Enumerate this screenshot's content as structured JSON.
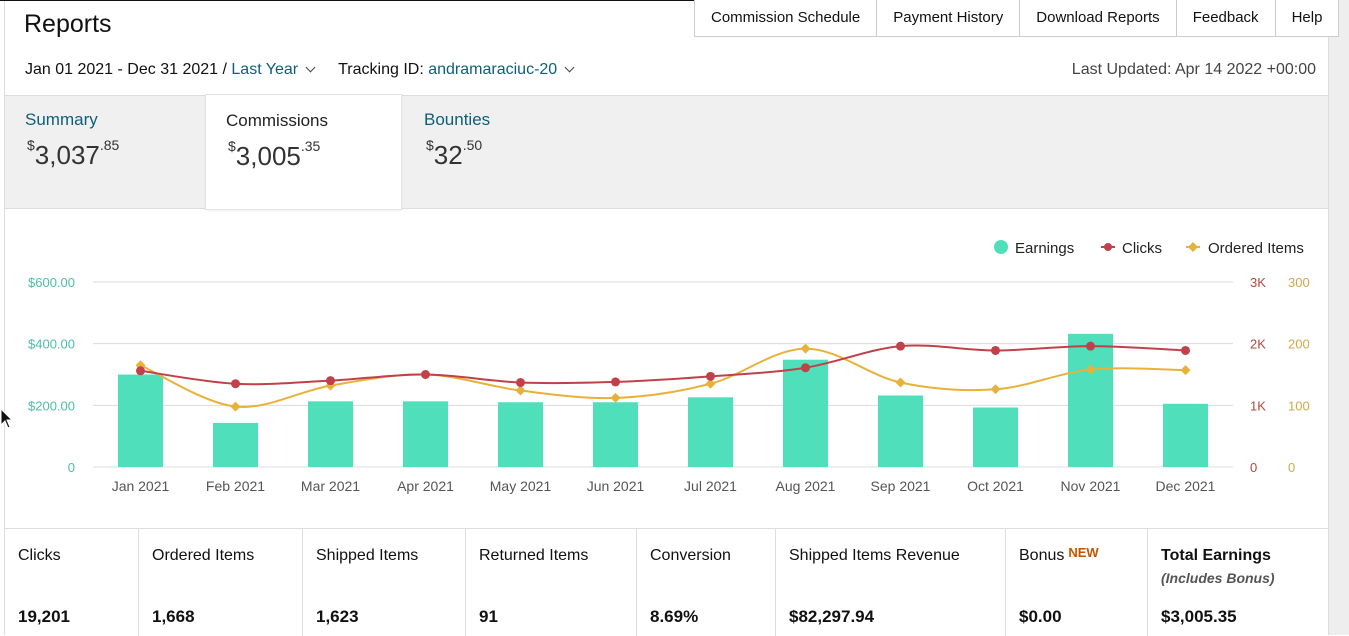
{
  "page": {
    "title": "Reports"
  },
  "topnav": {
    "tabs": [
      "Commission Schedule",
      "Payment History",
      "Download Reports",
      "Feedback",
      "Help"
    ]
  },
  "filters": {
    "date_range": "Jan 01 2021 - Dec 31 2021",
    "separator": "/",
    "period": "Last Year",
    "tracking_label": "Tracking ID:",
    "tracking_id": "andramaraciuc-20",
    "last_updated": "Last Updated: Apr 14 2022 +00:00"
  },
  "summary": {
    "summary": {
      "label": "Summary",
      "currency": "$",
      "whole": "3,037",
      "cents": ".85"
    },
    "commissions": {
      "label": "Commissions",
      "currency": "$",
      "whole": "3,005",
      "cents": ".35"
    },
    "bounties": {
      "label": "Bounties",
      "currency": "$",
      "whole": "32",
      "cents": ".50"
    },
    "selected": "commissions"
  },
  "colors": {
    "earnings": "#4fdfbb",
    "clicks": "#c0414a",
    "ordered_items": "#e8b23a",
    "link": "#0e5f78",
    "left_axis": "#4cbfa6",
    "clicks_axis": "#b04a3e",
    "ordered_axis": "#d4a64a"
  },
  "chart_data": {
    "type": "bar",
    "categories": [
      "Jan 2021",
      "Feb 2021",
      "Mar 2021",
      "Apr 2021",
      "May 2021",
      "Jun 2021",
      "Jul 2021",
      "Aug 2021",
      "Sep 2021",
      "Oct 2021",
      "Nov 2021",
      "Dec 2021"
    ],
    "series": [
      {
        "name": "Earnings",
        "type": "bar",
        "axis": "left",
        "values": [
          300,
          143,
          213,
          213,
          210,
          210,
          226,
          348,
          232,
          193,
          432,
          205
        ]
      },
      {
        "name": "Clicks",
        "type": "line",
        "axis": "right1",
        "values": [
          1560,
          1350,
          1400,
          1500,
          1370,
          1380,
          1470,
          1610,
          1960,
          1890,
          1960,
          1890
        ]
      },
      {
        "name": "Ordered Items",
        "type": "line",
        "axis": "right2",
        "values": [
          165,
          98,
          132,
          150,
          124,
          112,
          135,
          192,
          137,
          126,
          158,
          157
        ]
      }
    ],
    "axes": {
      "left": {
        "ticks": [
          "0",
          "$200.00",
          "$400.00",
          "$600.00"
        ],
        "min": 0,
        "max": 600
      },
      "right1": {
        "ticks": [
          "0",
          "1K",
          "2K",
          "3K"
        ],
        "min": 0,
        "max": 3000
      },
      "right2": {
        "ticks": [
          "0",
          "100",
          "200",
          "300"
        ],
        "min": 0,
        "max": 300
      }
    },
    "grid": true,
    "legend": "top-right",
    "legend_entries": [
      "Earnings",
      "Clicks",
      "Ordered Items"
    ]
  },
  "metrics": [
    {
      "label": "Clicks",
      "value": "19,201"
    },
    {
      "label": "Ordered Items",
      "value": "1,668"
    },
    {
      "label": "Shipped Items",
      "value": "1,623"
    },
    {
      "label": "Returned Items",
      "value": "91"
    },
    {
      "label": "Conversion",
      "value": "8.69%"
    },
    {
      "label": "Shipped Items Revenue",
      "value": "$82,297.94"
    },
    {
      "label": "Bonus",
      "badge": "NEW",
      "value": "$0.00"
    },
    {
      "label": "Total Earnings",
      "sub": "(Includes Bonus)",
      "value": "$3,005.35"
    }
  ]
}
